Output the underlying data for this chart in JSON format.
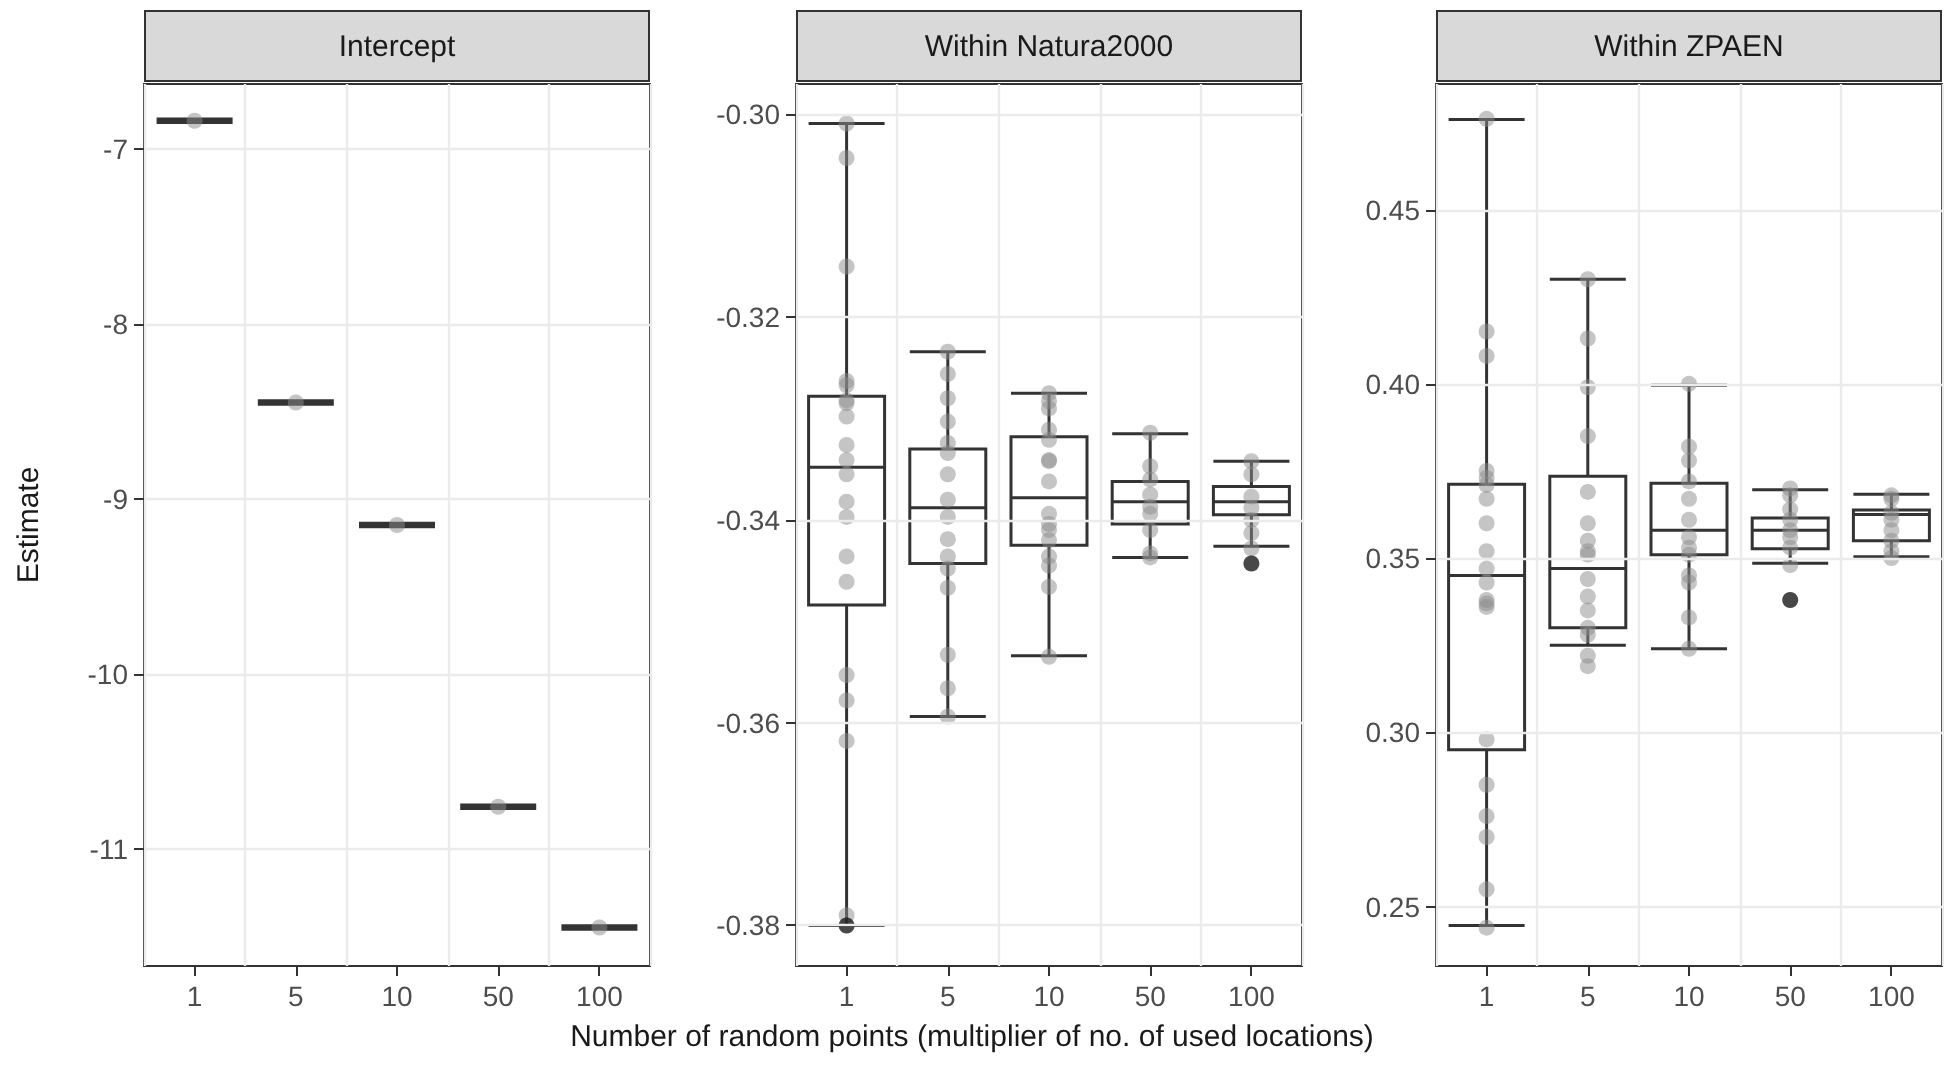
{
  "chart_data": [
    {
      "type": "box",
      "title": "Intercept",
      "ylabel": "Estimate",
      "categories": [
        "1",
        "5",
        "10",
        "50",
        "100"
      ],
      "grid": true,
      "marker": "circle",
      "ylim": [
        -11.67,
        -6.63
      ],
      "yticks": [
        -11,
        -10,
        -9,
        -8,
        -7
      ],
      "boxes": [
        {
          "low": -6.85,
          "q1": -6.84,
          "median": -6.84,
          "q3": -6.84,
          "high": -6.83
        },
        {
          "low": -8.46,
          "q1": -8.45,
          "median": -8.45,
          "q3": -8.45,
          "high": -8.44
        },
        {
          "low": -9.16,
          "q1": -9.15,
          "median": -9.15,
          "q3": -9.15,
          "high": -9.14
        },
        {
          "low": -10.77,
          "q1": -10.76,
          "median": -10.76,
          "q3": -10.76,
          "high": -10.75
        },
        {
          "low": -11.46,
          "q1": -11.45,
          "median": -11.45,
          "q3": -11.45,
          "high": -11.44
        }
      ],
      "series": [
        {
          "type": "scatter",
          "color": "#8c8c8c",
          "x": [
            "1",
            "5",
            "10",
            "50",
            "100"
          ],
          "values": [
            -6.84,
            -8.45,
            -9.15,
            -10.76,
            -11.45
          ]
        }
      ]
    },
    {
      "type": "box",
      "title": "Within Natura2000",
      "xlabel": "Number of random points (multiplier of no. of used locations)",
      "categories": [
        "1",
        "5",
        "10",
        "50",
        "100"
      ],
      "grid": true,
      "marker": "circle",
      "ylim": [
        -0.384,
        -0.297
      ],
      "yticks": [
        {
          "value": -0.38,
          "label": "-0.38"
        },
        {
          "value": -0.36,
          "label": "-0.36"
        },
        {
          "value": -0.34,
          "label": "-0.34"
        },
        {
          "value": -0.32,
          "label": "-0.32"
        },
        {
          "value": -0.3,
          "label": "-0.30"
        }
      ],
      "boxes": [
        {
          "low": -0.38,
          "q1": -0.3484,
          "median": -0.3348,
          "q3": -0.3278,
          "high": -0.3009,
          "outliers": [
            -0.38
          ]
        },
        {
          "low": -0.3594,
          "q1": -0.3443,
          "median": -0.3388,
          "q3": -0.333,
          "high": -0.3234
        },
        {
          "low": -0.3534,
          "q1": -0.3425,
          "median": -0.3378,
          "q3": -0.3318,
          "high": -0.3275
        },
        {
          "low": -0.3437,
          "q1": -0.3404,
          "median": -0.3382,
          "q3": -0.3362,
          "high": -0.3315
        },
        {
          "low": -0.3426,
          "q1": -0.3395,
          "median": -0.3382,
          "q3": -0.3367,
          "high": -0.3342,
          "outliers": [
            -0.3443
          ]
        }
      ],
      "series": [
        {
          "type": "scatter",
          "color": "#8c8c8c",
          "x": [
            "1",
            "1",
            "1",
            "1",
            "1",
            "1",
            "1",
            "1",
            "1",
            "1",
            "1",
            "1",
            "1",
            "1",
            "1",
            "1",
            "1",
            "1",
            "1",
            "5",
            "5",
            "5",
            "5",
            "5",
            "5",
            "5",
            "5",
            "5",
            "5",
            "5",
            "5",
            "5",
            "5",
            "5",
            "5",
            "10",
            "10",
            "10",
            "10",
            "10",
            "10",
            "10",
            "10",
            "10",
            "10",
            "10",
            "10",
            "10",
            "10",
            "10",
            "10",
            "50",
            "50",
            "50",
            "50",
            "50",
            "50",
            "50",
            "50",
            "50",
            "100",
            "100",
            "100",
            "100",
            "100",
            "100",
            "100"
          ],
          "values": [
            -0.3009,
            -0.3043,
            -0.315,
            -0.3263,
            -0.3267,
            -0.3285,
            -0.3282,
            -0.3298,
            -0.3326,
            -0.3341,
            -0.3355,
            -0.3382,
            -0.3397,
            -0.3436,
            -0.3461,
            -0.3553,
            -0.3578,
            -0.3618,
            -0.379,
            -0.3234,
            -0.3256,
            -0.328,
            -0.3303,
            -0.3324,
            -0.3334,
            -0.3355,
            -0.338,
            -0.3397,
            -0.3419,
            -0.3436,
            -0.3448,
            -0.3467,
            -0.3533,
            -0.3566,
            -0.3594,
            -0.3275,
            -0.3283,
            -0.329,
            -0.3311,
            -0.3321,
            -0.3341,
            -0.3342,
            -0.3362,
            -0.3394,
            -0.3404,
            -0.341,
            -0.342,
            -0.3436,
            -0.3445,
            -0.3466,
            -0.3535,
            -0.3314,
            -0.3347,
            -0.336,
            -0.3375,
            -0.3387,
            -0.3394,
            -0.341,
            -0.3433,
            -0.3437,
            -0.3342,
            -0.3355,
            -0.3377,
            -0.3388,
            -0.34,
            -0.3413,
            -0.3428
          ]
        }
      ]
    },
    {
      "type": "box",
      "title": "Within ZPAEN",
      "categories": [
        "1",
        "5",
        "10",
        "50",
        "100"
      ],
      "grid": true,
      "marker": "circle",
      "ylim": [
        0.233,
        0.486
      ],
      "yticks": [
        0.25,
        {
          "value": 0.3,
          "label": "0.30"
        },
        0.35,
        {
          "value": 0.4,
          "label": "0.40"
        },
        0.45
      ],
      "boxes": [
        {
          "low": 0.2446,
          "q1": 0.295,
          "median": 0.345,
          "q3": 0.3712,
          "high": 0.4758
        },
        {
          "low": 0.325,
          "q1": 0.33,
          "median": 0.347,
          "q3": 0.3735,
          "high": 0.43
        },
        {
          "low": 0.324,
          "q1": 0.351,
          "median": 0.358,
          "q3": 0.3715,
          "high": 0.3996
        },
        {
          "low": 0.3485,
          "q1": 0.3527,
          "median": 0.358,
          "q3": 0.3615,
          "high": 0.3696,
          "outliers": [
            0.338
          ]
        },
        {
          "low": 0.3504,
          "q1": 0.355,
          "median": 0.3625,
          "q3": 0.3638,
          "high": 0.3683
        }
      ],
      "series": [
        {
          "type": "scatter",
          "color": "#8c8c8c",
          "x": [
            "1",
            "1",
            "1",
            "1",
            "1",
            "1",
            "1",
            "1",
            "1",
            "1",
            "1",
            "1",
            "1",
            "1",
            "1",
            "1",
            "1",
            "1",
            "1",
            "1",
            "5",
            "5",
            "5",
            "5",
            "5",
            "5",
            "5",
            "5",
            "5",
            "5",
            "5",
            "5",
            "5",
            "5",
            "5",
            "5",
            "10",
            "10",
            "10",
            "10",
            "10",
            "10",
            "10",
            "10",
            "10",
            "10",
            "10",
            "10",
            "10",
            "50",
            "50",
            "50",
            "50",
            "50",
            "50",
            "50",
            "50",
            "100",
            "100",
            "100",
            "100",
            "100",
            "100",
            "100",
            "100"
          ],
          "values": [
            0.476,
            0.408,
            0.415,
            0.373,
            0.371,
            0.375,
            0.367,
            0.36,
            0.352,
            0.347,
            0.338,
            0.336,
            0.337,
            0.343,
            0.298,
            0.285,
            0.276,
            0.27,
            0.255,
            0.244,
            0.43,
            0.413,
            0.399,
            0.385,
            0.369,
            0.36,
            0.355,
            0.352,
            0.351,
            0.344,
            0.339,
            0.335,
            0.33,
            0.328,
            0.322,
            0.319,
            0.4,
            0.382,
            0.378,
            0.372,
            0.367,
            0.361,
            0.356,
            0.353,
            0.351,
            0.345,
            0.343,
            0.333,
            0.324,
            0.37,
            0.368,
            0.364,
            0.361,
            0.358,
            0.356,
            0.353,
            0.348,
            0.368,
            0.367,
            0.363,
            0.361,
            0.358,
            0.355,
            0.352,
            0.35
          ]
        }
      ]
    }
  ]
}
